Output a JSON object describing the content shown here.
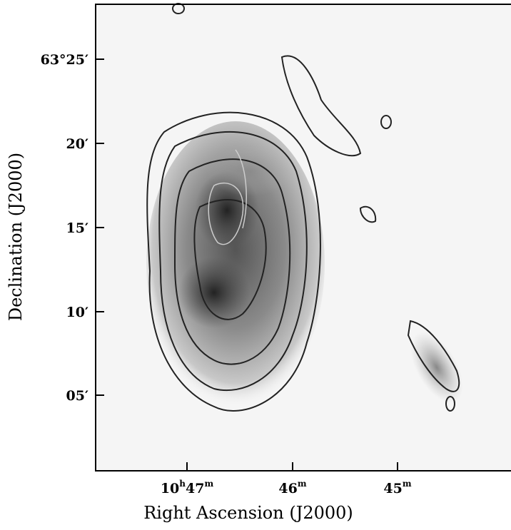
{
  "figure": {
    "x_axis": {
      "label": "Right Ascension (J2000)",
      "ticks": [
        [
          "10",
          "h",
          "47",
          "m"
        ],
        [
          "46",
          "m"
        ],
        [
          "45",
          "m"
        ]
      ]
    },
    "y_axis": {
      "label": "Declination (J2000)",
      "ticks": [
        "63°25′",
        "20′",
        "15′",
        "10′",
        "05′"
      ]
    }
  }
}
